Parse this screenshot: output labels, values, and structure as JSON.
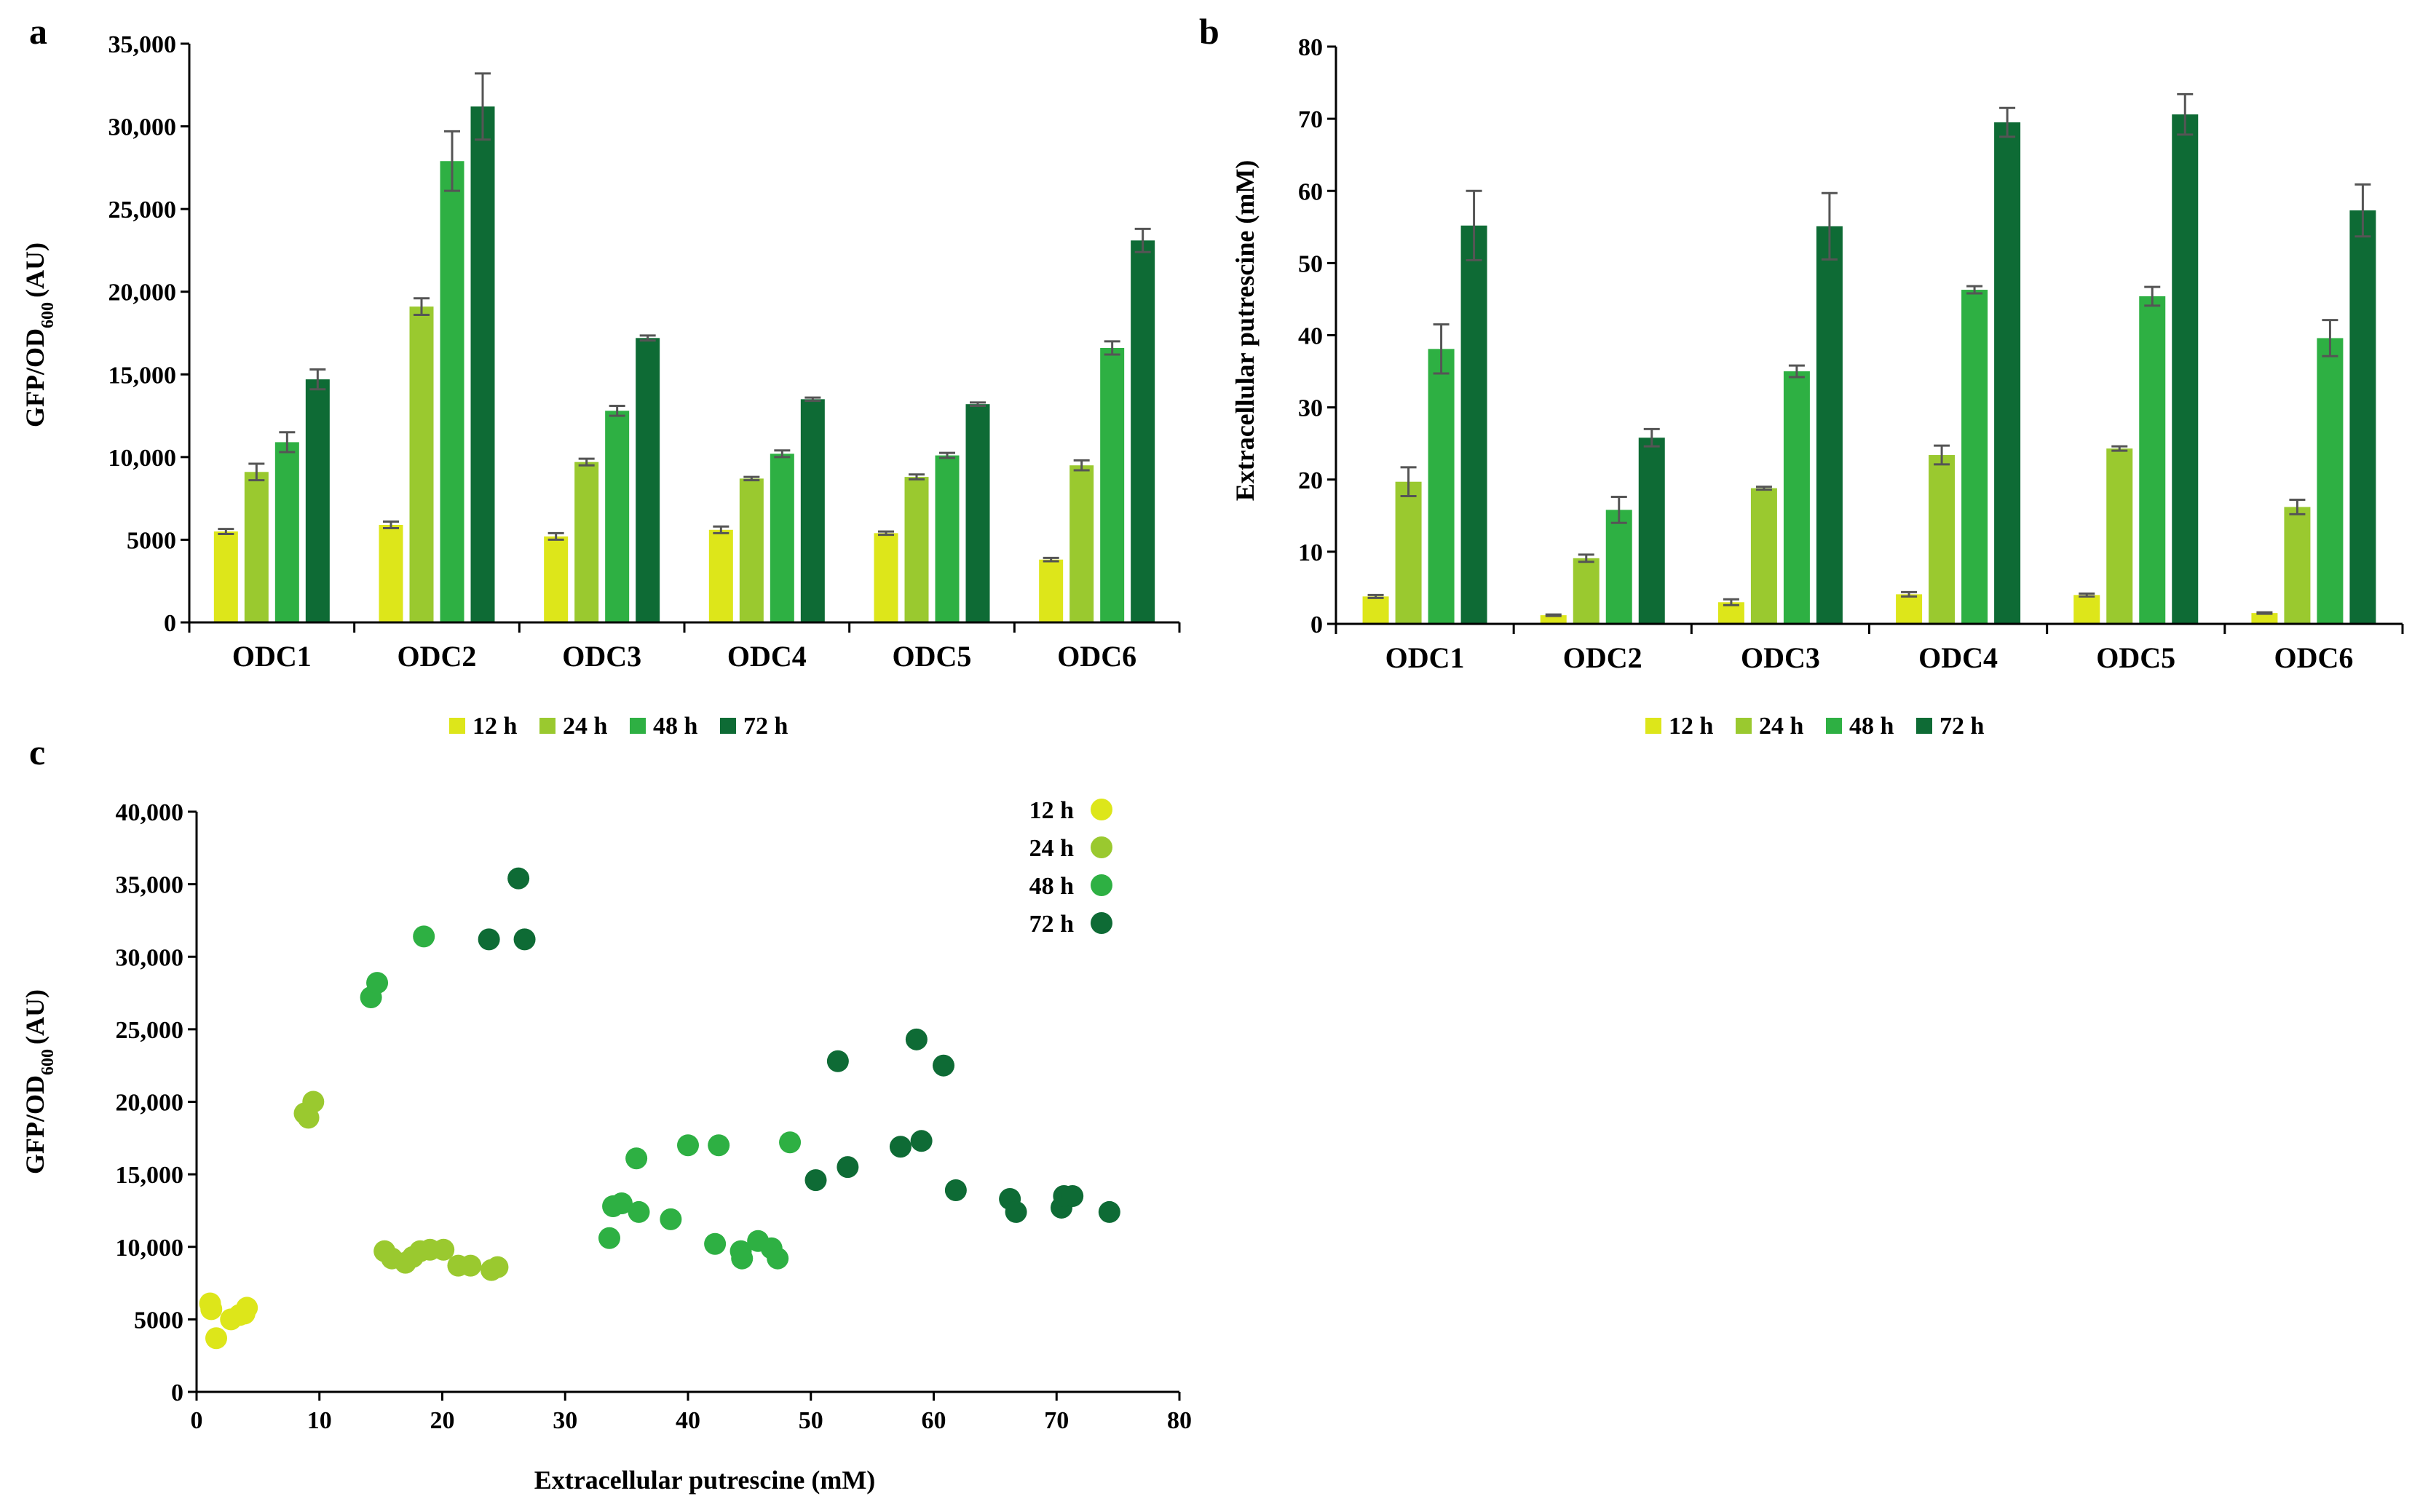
{
  "figure": {
    "panels": [
      "a",
      "b",
      "c"
    ]
  },
  "colors": {
    "12 h": "#dde61a",
    "24 h": "#9ac92f",
    "48 h": "#2eb043",
    "72 h": "#0e6b35",
    "error_bar": "#555555"
  },
  "chart_data": [
    {
      "panel": "a",
      "type": "bar",
      "ylabel_main": "GFP/OD",
      "ylabel_sub": "600",
      "ylabel_tail": "(AU)",
      "xlabel": "",
      "ylim": [
        0,
        35000
      ],
      "yticks": [
        0,
        5000,
        10000,
        15000,
        20000,
        25000,
        30000,
        35000
      ],
      "ytick_labels": [
        "0",
        "5000",
        "10,000",
        "15,000",
        "20,000",
        "25,000",
        "30,000",
        "35,000"
      ],
      "categories": [
        "ODC1",
        "ODC2",
        "ODC3",
        "ODC4",
        "ODC5",
        "ODC6"
      ],
      "series": [
        {
          "name": "12 h",
          "values": [
            5500,
            5900,
            5200,
            5600,
            5400,
            3800
          ],
          "errors": [
            150,
            200,
            200,
            200,
            100,
            100
          ]
        },
        {
          "name": "24 h",
          "values": [
            9100,
            19100,
            9700,
            8700,
            8800,
            9500
          ],
          "errors": [
            500,
            500,
            200,
            100,
            150,
            300
          ]
        },
        {
          "name": "48 h",
          "values": [
            10900,
            27900,
            12800,
            10200,
            10100,
            16600
          ],
          "errors": [
            600,
            1800,
            300,
            200,
            150,
            400
          ]
        },
        {
          "name": "72 h",
          "values": [
            14700,
            31200,
            17200,
            13500,
            13200,
            23100
          ],
          "errors": [
            600,
            2000,
            150,
            100,
            100,
            700
          ]
        }
      ],
      "legend": [
        "12 h",
        "24 h",
        "48 h",
        "72 h"
      ],
      "legend_position": "bottom"
    },
    {
      "panel": "b",
      "type": "bar",
      "ylabel": "Extracellular putrescine (mM)",
      "xlabel": "",
      "ylim": [
        0,
        80
      ],
      "yticks": [
        0,
        10,
        20,
        30,
        40,
        50,
        60,
        70,
        80
      ],
      "ytick_labels": [
        "0",
        "10",
        "20",
        "30",
        "40",
        "50",
        "60",
        "70",
        "80"
      ],
      "categories": [
        "ODC1",
        "ODC2",
        "ODC3",
        "ODC4",
        "ODC5",
        "ODC6"
      ],
      "series": [
        {
          "name": "12 h",
          "values": [
            3.8,
            1.2,
            3.0,
            4.1,
            4.0,
            1.5
          ],
          "errors": [
            0.2,
            0.1,
            0.4,
            0.3,
            0.2,
            0.1
          ]
        },
        {
          "name": "24 h",
          "values": [
            19.7,
            9.1,
            18.8,
            23.4,
            24.3,
            16.2
          ],
          "errors": [
            2.0,
            0.5,
            0.2,
            1.3,
            0.3,
            1.0
          ]
        },
        {
          "name": "48 h",
          "values": [
            38.1,
            15.8,
            35.0,
            46.3,
            45.4,
            39.6
          ],
          "errors": [
            3.4,
            1.8,
            0.8,
            0.5,
            1.3,
            2.5
          ]
        },
        {
          "name": "72 h",
          "values": [
            55.2,
            25.8,
            55.1,
            69.5,
            70.6,
            57.3
          ],
          "errors": [
            4.8,
            1.2,
            4.6,
            2.0,
            2.8,
            3.6
          ]
        }
      ],
      "legend": [
        "12 h",
        "24 h",
        "48 h",
        "72 h"
      ],
      "legend_position": "bottom"
    },
    {
      "panel": "c",
      "type": "scatter",
      "xlabel": "Extracellular putrescine (mM)",
      "ylabel_main": "GFP/OD",
      "ylabel_sub": "600",
      "ylabel_tail": "(AU)",
      "xlim": [
        0,
        80
      ],
      "ylim": [
        0,
        40000
      ],
      "xticks": [
        0,
        10,
        20,
        30,
        40,
        50,
        60,
        70,
        80
      ],
      "xtick_labels": [
        "0",
        "10",
        "20",
        "30",
        "40",
        "50",
        "60",
        "70",
        "80"
      ],
      "yticks": [
        0,
        5000,
        10000,
        15000,
        20000,
        25000,
        30000,
        35000,
        40000
      ],
      "ytick_labels": [
        "0",
        "5000",
        "10,000",
        "15,000",
        "20,000",
        "25,000",
        "30,000",
        "35,000",
        "40,000"
      ],
      "series": [
        {
          "name": "12 h",
          "points": [
            [
              1.1,
              6100
            ],
            [
              1.2,
              5700
            ],
            [
              1.6,
              3700
            ],
            [
              2.8,
              5000
            ],
            [
              3.5,
              5300
            ],
            [
              4.1,
              5800
            ],
            [
              3.9,
              5400
            ]
          ]
        },
        {
          "name": "24 h",
          "points": [
            [
              8.8,
              19200
            ],
            [
              9.1,
              18900
            ],
            [
              9.5,
              20000
            ],
            [
              15.3,
              9700
            ],
            [
              15.9,
              9200
            ],
            [
              17.0,
              8900
            ],
            [
              17.6,
              9300
            ],
            [
              18.2,
              9700
            ],
            [
              19.0,
              9800
            ],
            [
              20.1,
              9800
            ],
            [
              21.3,
              8700
            ],
            [
              22.3,
              8700
            ],
            [
              24.0,
              8400
            ],
            [
              24.5,
              8600
            ]
          ]
        },
        {
          "name": "48 h",
          "points": [
            [
              14.2,
              27200
            ],
            [
              14.7,
              28200
            ],
            [
              18.5,
              31400
            ],
            [
              33.6,
              10600
            ],
            [
              33.9,
              12800
            ],
            [
              34.6,
              13000
            ],
            [
              35.8,
              16100
            ],
            [
              36.0,
              12400
            ],
            [
              38.6,
              11900
            ],
            [
              40.0,
              17000
            ],
            [
              42.2,
              10200
            ],
            [
              42.5,
              17000
            ],
            [
              44.3,
              9700
            ],
            [
              44.4,
              9200
            ],
            [
              45.7,
              10400
            ],
            [
              46.8,
              9900
            ],
            [
              47.3,
              9200
            ],
            [
              48.3,
              17200
            ]
          ]
        },
        {
          "name": "72 h",
          "points": [
            [
              23.8,
              31200
            ],
            [
              26.2,
              35400
            ],
            [
              26.7,
              31200
            ],
            [
              50.4,
              14600
            ],
            [
              52.2,
              22800
            ],
            [
              53.0,
              15500
            ],
            [
              57.3,
              16900
            ],
            [
              58.6,
              24300
            ],
            [
              59.0,
              17300
            ],
            [
              60.8,
              22500
            ],
            [
              61.8,
              13900
            ],
            [
              66.2,
              13300
            ],
            [
              66.7,
              12400
            ],
            [
              70.4,
              12700
            ],
            [
              70.6,
              13500
            ],
            [
              71.3,
              13500
            ],
            [
              74.3,
              12400
            ]
          ]
        }
      ],
      "legend": [
        "12 h",
        "24 h",
        "48 h",
        "72 h"
      ],
      "legend_position": "top-right"
    }
  ]
}
